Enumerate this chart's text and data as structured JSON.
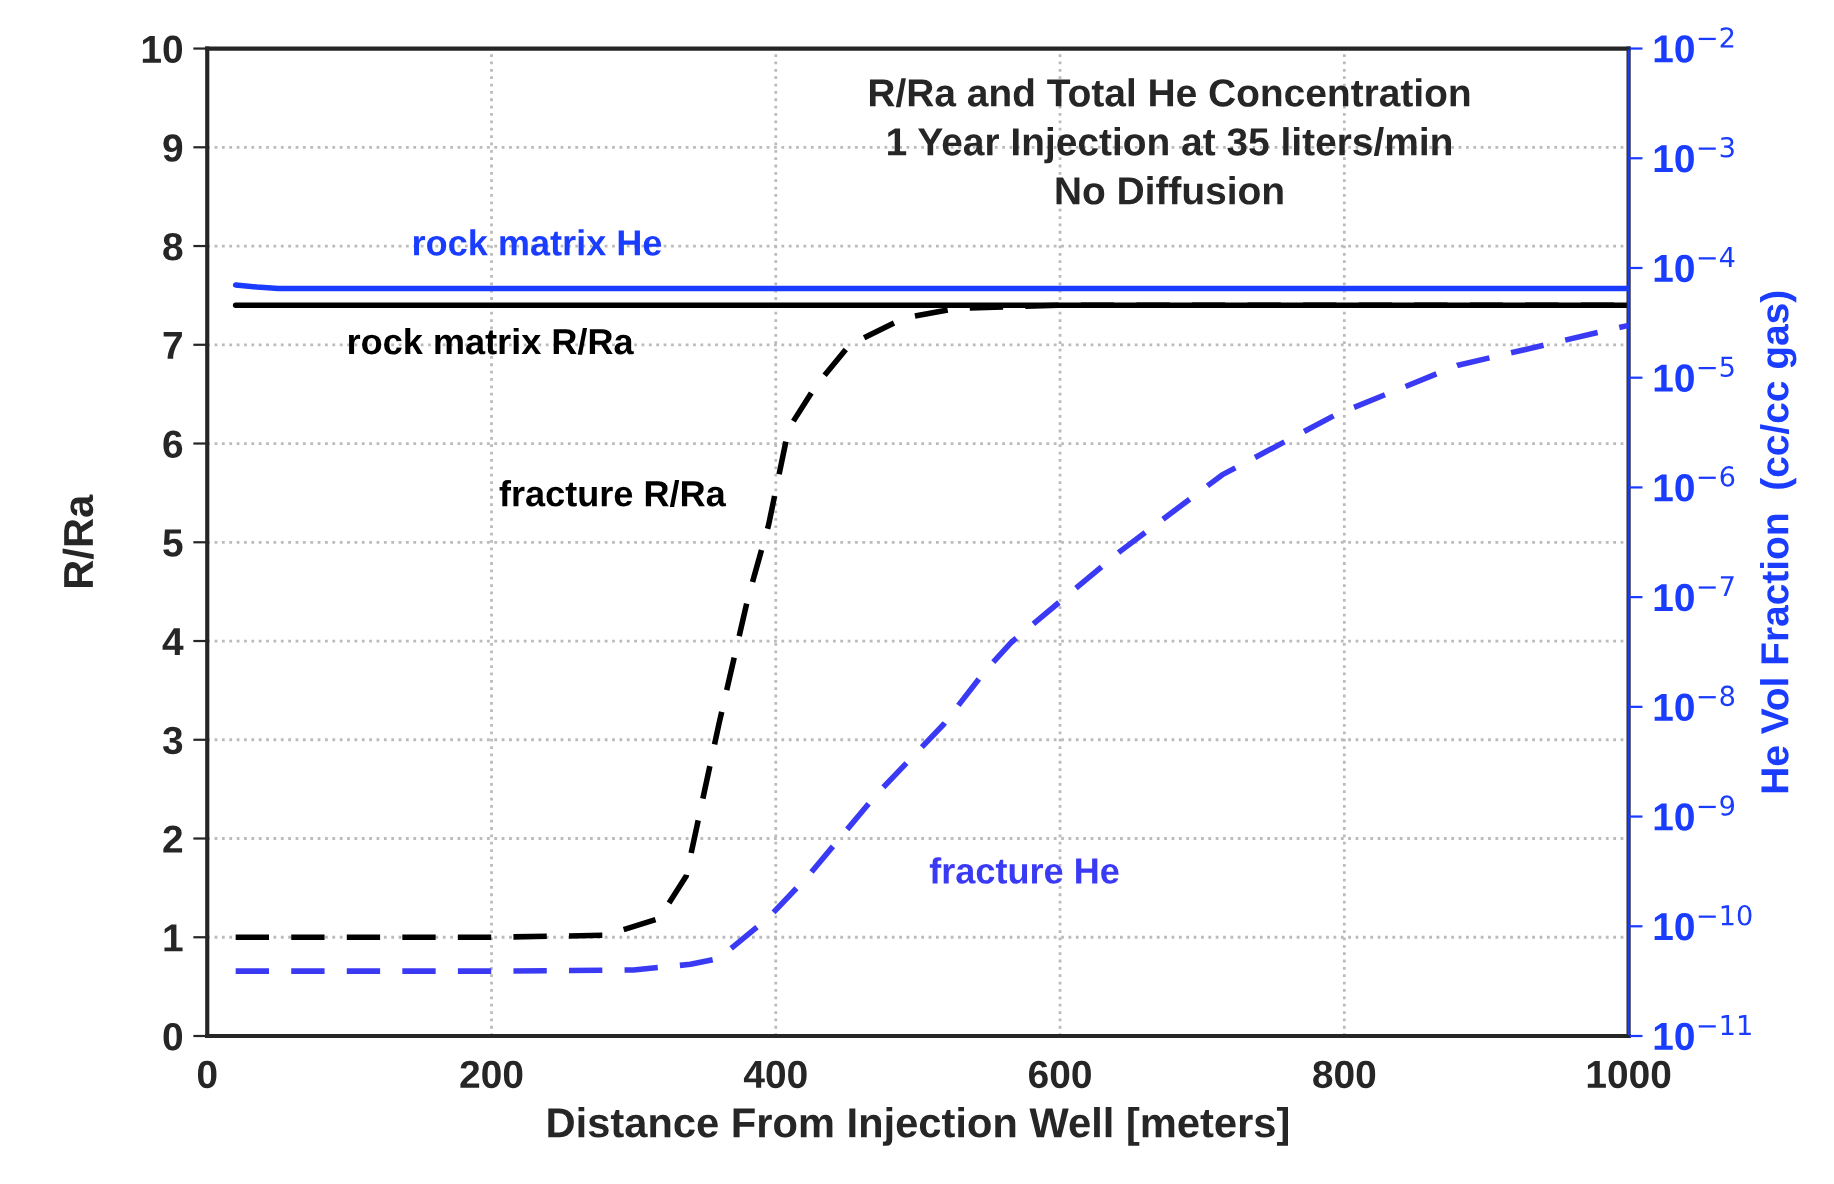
{
  "chart_data": {
    "type": "line",
    "title": "R/Ra and Total He Concentration\n1 Year Injection at 35 liters/min\nNo Diffusion",
    "xlabel": "Distance From Injection Well [meters]",
    "ylabel": "R/Ra",
    "y2label": "He Vol Fraction  (cc/cc gas)",
    "xlim": [
      0,
      1000
    ],
    "xticks": [
      0,
      200,
      400,
      600,
      800,
      1000
    ],
    "ylim": [
      0,
      10
    ],
    "yticks": [
      0,
      1,
      2,
      3,
      4,
      5,
      6,
      7,
      8,
      9,
      10
    ],
    "log": "y2",
    "y2lim": [
      1e-11,
      0.01
    ],
    "y2ticks": [
      {
        "value": 1e-11,
        "label": "10$^{−11}$"
      },
      {
        "value": 1e-10,
        "label": "10$^{−10}$"
      },
      {
        "value": 1e-09,
        "label": "10$^{−9}$"
      },
      {
        "value": 1e-08,
        "label": "10$^{−8}$"
      },
      {
        "value": 1e-07,
        "label": "10$^{−7}$"
      },
      {
        "value": 1e-06,
        "label": "10$^{−6}$"
      },
      {
        "value": 1e-05,
        "label": "10$^{−5}$"
      },
      {
        "value": 0.0001,
        "label": "10$^{−4}$"
      },
      {
        "value": 0.001,
        "label": "10$^{−3}$"
      },
      {
        "value": 0.01,
        "label": "10$^{−2}$"
      }
    ],
    "grid": true,
    "series": [
      {
        "name": "rock matrix R/Ra",
        "color": "#000000",
        "line_style": "solid",
        "x": [
          20,
          1000
        ],
        "values": [
          7.4,
          7.4
        ]
      },
      {
        "name": "fracture R/Ra",
        "color": "#000000",
        "line_style": "dashed",
        "x": [
          20,
          100,
          200,
          280,
          318,
          337,
          360,
          380,
          395,
          409,
          428,
          452,
          490,
          528,
          600,
          800,
          1000
        ],
        "values": [
          1.0,
          1.0,
          1.0,
          1.02,
          1.19,
          1.62,
          3.16,
          4.41,
          5.18,
          6.15,
          6.58,
          7.0,
          7.27,
          7.37,
          7.4,
          7.4,
          7.4
        ]
      },
      {
        "name": "rock matrix He",
        "color": "#1a3cff",
        "line_style": "solid",
        "axis": "y2",
        "x": [
          20,
          35,
          50,
          200,
          600,
          1000
        ],
        "values": [
          7e-05,
          6.7e-05,
          6.5e-05,
          6.5e-05,
          6.5e-05,
          6.5e-05
        ]
      },
      {
        "name": "fracture He",
        "color": "#3a3af5",
        "line_style": "dashed",
        "axis": "y2",
        "x": [
          20,
          100,
          200,
          300,
          340,
          360,
          395,
          423,
          471,
          518,
          547,
          566,
          642,
          714,
          794,
          880,
          1000
        ],
        "values": [
          3.9e-11,
          3.9e-11,
          3.9e-11,
          4e-11,
          4.5e-11,
          5.1e-11,
          1.2e-10,
          2.9e-10,
          1.6e-09,
          6.9e-09,
          2.1e-08,
          3.9e-08,
          2.6e-07,
          1.3e-06,
          4.6e-06,
          1.3e-05,
          3e-05
        ]
      }
    ]
  }
}
